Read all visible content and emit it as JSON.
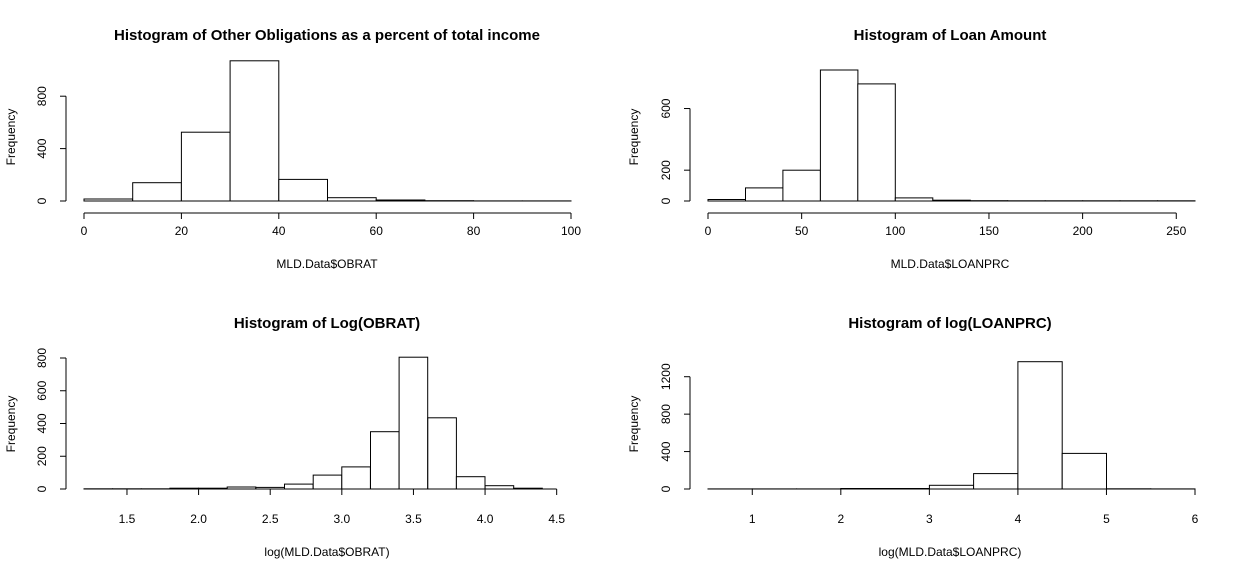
{
  "chart_data": [
    {
      "type": "bar",
      "title": "Histogram of Other Obligations as a percent of total income",
      "xlabel": "MLD.Data$OBRAT",
      "ylabel": "Frequency",
      "bins": [
        [
          0,
          10
        ],
        [
          10,
          20
        ],
        [
          20,
          30
        ],
        [
          30,
          40
        ],
        [
          40,
          50
        ],
        [
          50,
          60
        ],
        [
          60,
          70
        ],
        [
          70,
          80
        ],
        [
          80,
          90
        ],
        [
          90,
          100
        ]
      ],
      "values": [
        15,
        140,
        525,
        1070,
        165,
        25,
        8,
        2,
        1,
        1
      ],
      "x_ticks": [
        0,
        20,
        40,
        60,
        80,
        100
      ],
      "y_ticks": [
        0,
        400,
        800
      ],
      "xlim": [
        0,
        100
      ],
      "ylim": [
        0,
        1000
      ],
      "grid": false
    },
    {
      "type": "bar",
      "title": "Histogram of Loan Amount",
      "xlabel": "MLD.Data$LOANPRC",
      "ylabel": "Frequency",
      "bins": [
        [
          0,
          20
        ],
        [
          20,
          40
        ],
        [
          40,
          60
        ],
        [
          60,
          80
        ],
        [
          80,
          100
        ],
        [
          100,
          120
        ],
        [
          120,
          140
        ],
        [
          140,
          160
        ],
        [
          160,
          180
        ],
        [
          180,
          200
        ],
        [
          200,
          220
        ],
        [
          220,
          240
        ],
        [
          240,
          260
        ]
      ],
      "values": [
        10,
        85,
        200,
        850,
        760,
        20,
        5,
        2,
        1,
        1,
        1,
        1,
        1
      ],
      "x_ticks": [
        0,
        50,
        100,
        150,
        200,
        250
      ],
      "y_ticks": [
        0,
        200,
        600
      ],
      "xlim": [
        0,
        260
      ],
      "ylim": [
        0,
        850
      ],
      "grid": false
    },
    {
      "type": "bar",
      "title": "Histogram of Log(OBRAT)",
      "xlabel": "log(MLD.Data$OBRAT)",
      "ylabel": "Frequency",
      "bins": [
        [
          1.2,
          1.4
        ],
        [
          1.4,
          1.6
        ],
        [
          1.6,
          1.8
        ],
        [
          1.8,
          2.0
        ],
        [
          2.0,
          2.2
        ],
        [
          2.2,
          2.4
        ],
        [
          2.4,
          2.6
        ],
        [
          2.6,
          2.8
        ],
        [
          2.8,
          3.0
        ],
        [
          3.0,
          3.2
        ],
        [
          3.2,
          3.4
        ],
        [
          3.4,
          3.6
        ],
        [
          3.6,
          3.8
        ],
        [
          3.8,
          4.0
        ],
        [
          4.0,
          4.2
        ],
        [
          4.2,
          4.4
        ]
      ],
      "values": [
        1,
        1,
        1,
        5,
        5,
        12,
        10,
        30,
        85,
        135,
        350,
        805,
        435,
        75,
        20,
        5
      ],
      "x_ticks": [
        1.5,
        2.0,
        2.5,
        3.0,
        3.5,
        4.0,
        4.5
      ],
      "y_ticks": [
        0,
        200,
        400,
        600,
        800
      ],
      "xlim": [
        1.2,
        4.6
      ],
      "ylim": [
        0,
        800
      ],
      "grid": false
    },
    {
      "type": "bar",
      "title": "Histogram of log(LOANPRC)",
      "xlabel": "log(MLD.Data$LOANPRC)",
      "ylabel": "Frequency",
      "bins": [
        [
          0.5,
          1.0
        ],
        [
          1.0,
          1.5
        ],
        [
          1.5,
          2.0
        ],
        [
          2.0,
          2.5
        ],
        [
          2.5,
          3.0
        ],
        [
          3.0,
          3.5
        ],
        [
          3.5,
          4.0
        ],
        [
          4.0,
          4.5
        ],
        [
          4.5,
          5.0
        ],
        [
          5.0,
          5.5
        ],
        [
          5.5,
          6.0
        ]
      ],
      "values": [
        1,
        1,
        1,
        5,
        5,
        40,
        165,
        1360,
        380,
        2,
        1
      ],
      "x_ticks": [
        1,
        2,
        3,
        4,
        5,
        6
      ],
      "y_ticks": [
        0,
        400,
        800,
        1200
      ],
      "xlim": [
        0.5,
        6.0
      ],
      "ylim": [
        0,
        1400
      ],
      "grid": false
    }
  ]
}
